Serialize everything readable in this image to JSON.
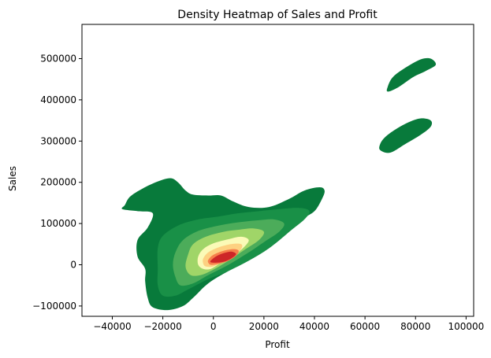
{
  "chart_data": {
    "type": "heatmap",
    "subtype": "kde-filled-contour",
    "title": "Density Heatmap of Sales and Profit",
    "xlabel": "Profit",
    "ylabel": "Sales",
    "xlim": [
      -52000,
      103000
    ],
    "ylim": [
      -125000,
      583000
    ],
    "xticks": [
      -40000,
      -20000,
      0,
      20000,
      40000,
      60000,
      80000,
      100000
    ],
    "yticks": [
      -100000,
      0,
      100000,
      200000,
      300000,
      400000,
      500000
    ],
    "colormap": "RdYlGn_r",
    "grid": false,
    "legend": "none",
    "levels": [
      {
        "level": 1,
        "color": "#087a3b"
      },
      {
        "level": 2,
        "color": "#199047"
      },
      {
        "level": 3,
        "color": "#4cac5a"
      },
      {
        "level": 4,
        "color": "#a0d568"
      },
      {
        "level": 5,
        "color": "#fbfab7"
      },
      {
        "level": 6,
        "color": "#fdd181"
      },
      {
        "level": 7,
        "color": "#f67f4b"
      },
      {
        "level": 8,
        "color": "#cd2627"
      }
    ],
    "regions": [
      {
        "level": 1,
        "points": [
          [
            -35000,
            145000
          ],
          [
            -33000,
            165000
          ],
          [
            -28000,
            185000
          ],
          [
            -22000,
            202000
          ],
          [
            -17000,
            210000
          ],
          [
            -14000,
            200000
          ],
          [
            -11000,
            180000
          ],
          [
            -8000,
            170000
          ],
          [
            -2000,
            168000
          ],
          [
            3000,
            168000
          ],
          [
            8000,
            153000
          ],
          [
            14000,
            140000
          ],
          [
            22000,
            140000
          ],
          [
            30000,
            160000
          ],
          [
            36000,
            180000
          ],
          [
            42000,
            188000
          ],
          [
            44000,
            180000
          ],
          [
            43000,
            160000
          ],
          [
            40000,
            130000
          ],
          [
            35000,
            110000
          ],
          [
            30000,
            80000
          ],
          [
            22000,
            40000
          ],
          [
            14000,
            10000
          ],
          [
            6000,
            -15000
          ],
          [
            -2000,
            -45000
          ],
          [
            -8000,
            -80000
          ],
          [
            -12000,
            -100000
          ],
          [
            -18000,
            -110000
          ],
          [
            -24000,
            -103000
          ],
          [
            -26000,
            -80000
          ],
          [
            -27000,
            -40000
          ],
          [
            -27000,
            -10000
          ],
          [
            -30000,
            20000
          ],
          [
            -30000,
            60000
          ],
          [
            -26000,
            90000
          ],
          [
            -24000,
            125000
          ],
          [
            -30000,
            130000
          ],
          [
            -36000,
            135000
          ]
        ]
      },
      {
        "level": 1,
        "points": [
          [
            66000,
            293000
          ],
          [
            68000,
            310000
          ],
          [
            72000,
            328000
          ],
          [
            77000,
            345000
          ],
          [
            82000,
            355000
          ],
          [
            86000,
            350000
          ],
          [
            86000,
            335000
          ],
          [
            82000,
            315000
          ],
          [
            76000,
            293000
          ],
          [
            70000,
            272000
          ],
          [
            66000,
            278000
          ]
        ]
      },
      {
        "level": 1,
        "points": [
          [
            69000,
            432000
          ],
          [
            71000,
            455000
          ],
          [
            76000,
            478000
          ],
          [
            82000,
            498000
          ],
          [
            86000,
            500000
          ],
          [
            88000,
            485000
          ],
          [
            84000,
            470000
          ],
          [
            79000,
            455000
          ],
          [
            73000,
            430000
          ],
          [
            69000,
            420000
          ]
        ]
      },
      {
        "level": 2,
        "points": [
          [
            -22000,
            40000
          ],
          [
            -20000,
            70000
          ],
          [
            -14000,
            95000
          ],
          [
            -6000,
            110000
          ],
          [
            2000,
            117000
          ],
          [
            10000,
            125000
          ],
          [
            18000,
            130000
          ],
          [
            26000,
            135000
          ],
          [
            34000,
            138000
          ],
          [
            38000,
            130000
          ],
          [
            36000,
            110000
          ],
          [
            30000,
            80000
          ],
          [
            22000,
            40000
          ],
          [
            14000,
            10000
          ],
          [
            6000,
            -15000
          ],
          [
            -2000,
            -35000
          ],
          [
            -10000,
            -60000
          ],
          [
            -15000,
            -75000
          ],
          [
            -20000,
            -75000
          ],
          [
            -22000,
            -50000
          ],
          [
            -22000,
            -10000
          ]
        ]
      },
      {
        "level": 3,
        "points": [
          [
            -15000,
            30000
          ],
          [
            -12000,
            60000
          ],
          [
            -6000,
            82000
          ],
          [
            2000,
            95000
          ],
          [
            10000,
            103000
          ],
          [
            18000,
            108000
          ],
          [
            24000,
            110000
          ],
          [
            28000,
            100000
          ],
          [
            26000,
            80000
          ],
          [
            20000,
            55000
          ],
          [
            14000,
            30000
          ],
          [
            6000,
            0
          ],
          [
            -2000,
            -25000
          ],
          [
            -8000,
            -45000
          ],
          [
            -13000,
            -50000
          ],
          [
            -15000,
            -30000
          ],
          [
            -16000,
            0
          ]
        ]
      },
      {
        "level": 4,
        "points": [
          [
            -10000,
            25000
          ],
          [
            -8000,
            50000
          ],
          [
            -3000,
            68000
          ],
          [
            4000,
            80000
          ],
          [
            10000,
            85000
          ],
          [
            16000,
            88000
          ],
          [
            20000,
            80000
          ],
          [
            18000,
            60000
          ],
          [
            12000,
            35000
          ],
          [
            6000,
            10000
          ],
          [
            0,
            -12000
          ],
          [
            -5000,
            -25000
          ],
          [
            -9000,
            -25000
          ],
          [
            -11000,
            -5000
          ]
        ]
      },
      {
        "level": 5,
        "points": [
          [
            -6000,
            20000
          ],
          [
            -4000,
            38000
          ],
          [
            0,
            52000
          ],
          [
            6000,
            62000
          ],
          [
            11000,
            68000
          ],
          [
            14000,
            60000
          ],
          [
            12000,
            42000
          ],
          [
            8000,
            22000
          ],
          [
            3000,
            5000
          ],
          [
            -1000,
            -10000
          ],
          [
            -4000,
            -10000
          ],
          [
            -6000,
            0
          ]
        ]
      },
      {
        "level": 6,
        "points": [
          [
            -4000,
            15000
          ],
          [
            -2000,
            30000
          ],
          [
            2000,
            42000
          ],
          [
            7000,
            50000
          ],
          [
            11000,
            50000
          ],
          [
            11000,
            38000
          ],
          [
            8000,
            22000
          ],
          [
            4000,
            8000
          ],
          [
            0,
            -4000
          ],
          [
            -3000,
            -4000
          ],
          [
            -4000,
            3000
          ]
        ]
      },
      {
        "level": 7,
        "points": [
          [
            -2000,
            12000
          ],
          [
            0,
            24000
          ],
          [
            4000,
            34000
          ],
          [
            8000,
            38000
          ],
          [
            10000,
            34000
          ],
          [
            9000,
            22000
          ],
          [
            6000,
            10000
          ],
          [
            2000,
            2000
          ],
          [
            -1000,
            0
          ],
          [
            -2000,
            5000
          ]
        ]
      },
      {
        "level": 8,
        "points": [
          [
            -1000,
            10000
          ],
          [
            1000,
            20000
          ],
          [
            4000,
            28000
          ],
          [
            7000,
            32000
          ],
          [
            9000,
            26000
          ],
          [
            7000,
            15000
          ],
          [
            4000,
            7000
          ],
          [
            1000,
            5000
          ],
          [
            -1000,
            6000
          ]
        ]
      }
    ]
  }
}
